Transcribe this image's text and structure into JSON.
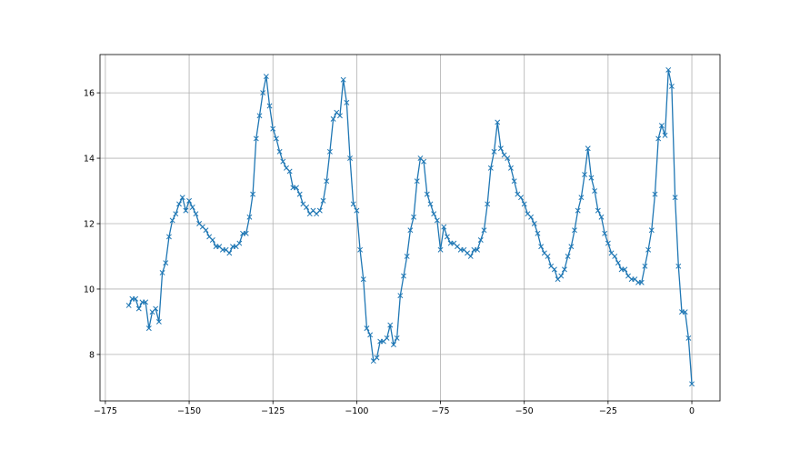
{
  "chart_data": {
    "type": "line",
    "title": "",
    "xlabel": "",
    "ylabel": "",
    "xlim": [
      -176.6,
      8.4
    ],
    "ylim": [
      6.58,
      17.17
    ],
    "xticks": [
      -175,
      -150,
      -125,
      -100,
      -75,
      -50,
      -25,
      0
    ],
    "xtick_labels": [
      "−175",
      "−150",
      "−125",
      "−100",
      "−75",
      "−50",
      "−25",
      "0"
    ],
    "yticks": [
      8,
      10,
      12,
      14,
      16
    ],
    "ytick_labels": [
      "8",
      "10",
      "12",
      "14",
      "16"
    ],
    "grid": true,
    "marker": "x",
    "color": "#1f77b4",
    "series": [
      {
        "x": [
          -168,
          -167,
          -166,
          -165,
          -164,
          -163,
          -162,
          -161,
          -160,
          -159,
          -158,
          -157,
          -156,
          -155,
          -154,
          -153,
          -152,
          -151,
          -150,
          -149,
          -148,
          -147,
          -146,
          -145,
          -144,
          -143,
          -142,
          -141,
          -140,
          -139,
          -138,
          -137,
          -136,
          -135,
          -134,
          -133,
          -132,
          -131,
          -130,
          -129,
          -128,
          -127,
          -126,
          -125,
          -124,
          -123,
          -122,
          -121,
          -120,
          -119,
          -118,
          -117,
          -116,
          -115,
          -114,
          -113,
          -112,
          -111,
          -110,
          -109,
          -108,
          -107,
          -106,
          -105,
          -104,
          -103,
          -102,
          -101,
          -100,
          -99,
          -98,
          -97,
          -96,
          -95,
          -94,
          -93,
          -92,
          -91,
          -90,
          -89,
          -88,
          -87,
          -86,
          -85,
          -84,
          -83,
          -82,
          -81,
          -80,
          -79,
          -78,
          -77,
          -76,
          -75,
          -74,
          -73,
          -72,
          -71,
          -70,
          -69,
          -68,
          -67,
          -66,
          -65,
          -64,
          -63,
          -62,
          -61,
          -60,
          -59,
          -58,
          -57,
          -56,
          -55,
          -54,
          -53,
          -52,
          -51,
          -50,
          -49,
          -48,
          -47,
          -46,
          -45,
          -44,
          -43,
          -42,
          -41,
          -40,
          -39,
          -38,
          -37,
          -36,
          -35,
          -34,
          -33,
          -32,
          -31,
          -30,
          -29,
          -28,
          -27,
          -26,
          -25,
          -24,
          -23,
          -22,
          -21,
          -20,
          -19,
          -18,
          -17,
          -16,
          -15,
          -14,
          -13,
          -12,
          -11,
          -10,
          -9,
          -8,
          -7,
          -6,
          -5,
          -4,
          -3,
          -2,
          -1,
          0
        ],
        "y": [
          9.5,
          9.7,
          9.7,
          9.4,
          9.6,
          9.6,
          8.8,
          9.3,
          9.4,
          9.0,
          10.5,
          10.8,
          11.6,
          12.1,
          12.3,
          12.6,
          12.8,
          12.4,
          12.7,
          12.5,
          12.3,
          12.0,
          11.9,
          11.8,
          11.6,
          11.5,
          11.3,
          11.3,
          11.2,
          11.2,
          11.1,
          11.3,
          11.3,
          11.4,
          11.7,
          11.7,
          12.2,
          12.9,
          14.6,
          15.3,
          16.0,
          16.5,
          15.6,
          14.9,
          14.6,
          14.2,
          13.9,
          13.7,
          13.6,
          13.1,
          13.1,
          12.9,
          12.6,
          12.5,
          12.3,
          12.4,
          12.3,
          12.4,
          12.7,
          13.3,
          14.2,
          15.2,
          15.4,
          15.3,
          16.4,
          15.7,
          14.0,
          12.6,
          12.4,
          11.2,
          10.3,
          8.8,
          8.6,
          7.8,
          7.9,
          8.4,
          8.4,
          8.5,
          8.9,
          8.3,
          8.5,
          9.8,
          10.4,
          11.0,
          11.8,
          12.2,
          13.3,
          14.0,
          13.9,
          12.9,
          12.6,
          12.3,
          12.1,
          11.2,
          11.9,
          11.6,
          11.4,
          11.4,
          11.3,
          11.2,
          11.2,
          11.1,
          11.0,
          11.2,
          11.2,
          11.5,
          11.8,
          12.6,
          13.7,
          14.2,
          15.1,
          14.3,
          14.1,
          14.0,
          13.7,
          13.3,
          12.9,
          12.8,
          12.6,
          12.3,
          12.2,
          12.0,
          11.7,
          11.3,
          11.1,
          11.0,
          10.7,
          10.6,
          10.3,
          10.4,
          10.6,
          11.0,
          11.3,
          11.8,
          12.4,
          12.8,
          13.5,
          14.3,
          13.4,
          13.0,
          12.4,
          12.2,
          11.7,
          11.4,
          11.1,
          11.0,
          10.8,
          10.6,
          10.6,
          10.4,
          10.3,
          10.3,
          10.2,
          10.2,
          10.7,
          11.2,
          11.8,
          12.9,
          14.6,
          15.0,
          14.7,
          16.7,
          16.2,
          12.8,
          10.7,
          9.3,
          9.3,
          8.5,
          7.1
        ]
      }
    ]
  }
}
